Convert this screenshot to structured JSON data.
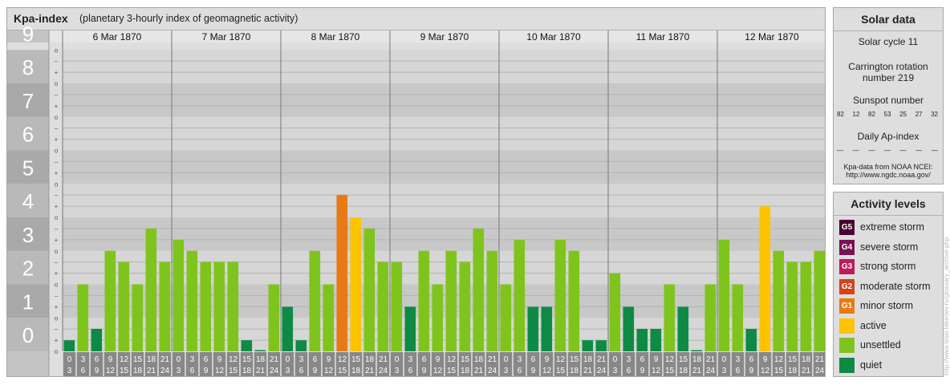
{
  "header": {
    "title": "Kpa-index",
    "subtitle": "(planetary 3-hourly index of geomagnetic activity)"
  },
  "chart_data": {
    "type": "bar",
    "days": [
      "6 Mar 1870",
      "7 Mar 1870",
      "8 Mar 1870",
      "9 Mar 1870",
      "10 Mar 1870",
      "11 Mar 1870",
      "12 Mar 1870"
    ],
    "interval_labels": [
      [
        "0",
        "3"
      ],
      [
        "3",
        "6"
      ],
      [
        "6",
        "9"
      ],
      [
        "9",
        "12"
      ],
      [
        "12",
        "15"
      ],
      [
        "15",
        "18"
      ],
      [
        "18",
        "21"
      ],
      [
        "21",
        "24"
      ]
    ],
    "y_major_ticks": [
      "0",
      "1",
      "2",
      "3",
      "4",
      "5",
      "6",
      "7",
      "8",
      "9"
    ],
    "y_minor_ticks": [
      "+",
      "o",
      "–"
    ],
    "ylim": [
      0,
      9
    ],
    "kp_values": [
      [
        0.33,
        2,
        0.67,
        3,
        2.67,
        2,
        3.67,
        2.67
      ],
      [
        3.33,
        3,
        2.67,
        2.67,
        2.67,
        0.33,
        0,
        2
      ],
      [
        1.33,
        0.33,
        3,
        2,
        4.67,
        4,
        3.67,
        2.67
      ],
      [
        2.67,
        1.33,
        3,
        2,
        3,
        2.67,
        3.67,
        3
      ],
      [
        2,
        3.33,
        1.33,
        1.33,
        3.33,
        3,
        0.33,
        0.33
      ],
      [
        2.33,
        1.33,
        0.67,
        0.67,
        2,
        1.33,
        0,
        2
      ],
      [
        3.33,
        2,
        0.67,
        4.33,
        3,
        2.67,
        2.67,
        3
      ]
    ],
    "level_colors": {
      "quiet": "#0e8a45",
      "unsettled": "#7fc41c",
      "active": "#fdc300",
      "minor": "#e87a15",
      "moderate": "#d44319",
      "strong": "#c0195f",
      "severe": "#7a1152",
      "extreme": "#4a0030"
    },
    "grid": true
  },
  "solar": {
    "title": "Solar data",
    "cycle": "Solar cycle 11",
    "carrington_line1": "Carrington rotation",
    "carrington_line2": "number 219",
    "sunspot_title": "Sunspot number",
    "sunspot_values": [
      "82",
      "12",
      "82",
      "53",
      "25",
      "27",
      "32"
    ],
    "ap_title": "Daily Ap-index",
    "ap_values": [
      "—",
      "—",
      "—",
      "—",
      "—",
      "—",
      "—"
    ],
    "source_line1": "Kpa-data from NOAA NCEI:",
    "source_line2": "http://www.ngdc.noaa.gov/"
  },
  "activity": {
    "title": "Activity levels",
    "items": [
      {
        "badge": "G5",
        "label": "extreme storm",
        "color": "#4a0030"
      },
      {
        "badge": "G4",
        "label": "severe storm",
        "color": "#7a1152"
      },
      {
        "badge": "G3",
        "label": "strong storm",
        "color": "#c0195f"
      },
      {
        "badge": "G2",
        "label": "moderate storm",
        "color": "#d44319"
      },
      {
        "badge": "G1",
        "label": "minor storm",
        "color": "#e87a15"
      },
      {
        "badge": "",
        "label": "active",
        "color": "#fdc300"
      },
      {
        "badge": "",
        "label": "unsettled",
        "color": "#7fc41c"
      },
      {
        "badge": "",
        "label": "quiet",
        "color": "#0e8a45"
      }
    ]
  },
  "watermark": "http://www.tesis.lebedev.ru/glossary_archive.php"
}
